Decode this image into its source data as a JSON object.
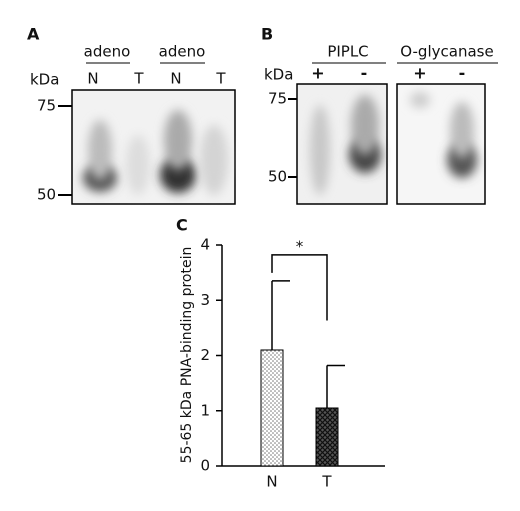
{
  "panel_a": {
    "label": "A",
    "groups": [
      "adeno",
      "adeno"
    ],
    "lanes": [
      "N",
      "T",
      "N",
      "T"
    ],
    "unit": "kDa",
    "markers": [
      "75",
      "50"
    ]
  },
  "panel_b": {
    "label": "B",
    "groups": [
      "PIPLC",
      "O-glycanase"
    ],
    "lanes": [
      "+",
      "-",
      "+",
      "-"
    ],
    "unit": "kDa",
    "markers": [
      "75",
      "50"
    ]
  },
  "chart_data": {
    "type": "bar",
    "panel_label": "C",
    "y_label": "55-65 kDa PNA-binding protein",
    "categories": [
      "N",
      "T"
    ],
    "values": [
      2.1,
      1.05
    ],
    "errors": [
      1.25,
      0.77
    ],
    "patterns": [
      "dots",
      "crosshatch"
    ],
    "ylim": [
      0,
      4
    ],
    "yticks": [
      0,
      1,
      2,
      3,
      4
    ],
    "significance": "*"
  }
}
